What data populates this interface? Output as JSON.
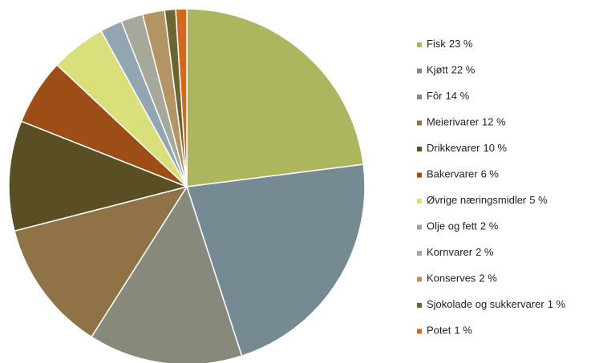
{
  "chart_data": {
    "type": "pie",
    "categories": [
      "Fisk",
      "Kjøtt",
      "Fôr",
      "Meierivarer",
      "Drikkevarer",
      "Bakervarer",
      "Øvrige næringsmidler",
      "Olje og fett",
      "Kornvarer",
      "Konserves",
      "Sjokolade og sukkervarer",
      "Potet"
    ],
    "values": [
      23,
      22,
      14,
      12,
      10,
      6,
      5,
      2,
      2,
      2,
      1,
      1
    ],
    "value_labels": [
      "23 %",
      "22 %",
      "14 %",
      "12 %",
      "10 %",
      "6 %",
      "5 %",
      "2 %",
      "2 %",
      "2 %",
      "1 %",
      "1 %"
    ],
    "colors": [
      "#adb65e",
      "#768a93",
      "#878a7a",
      "#8f7245",
      "#5a4e24",
      "#9c4e16",
      "#d9df7a",
      "#91a6b0",
      "#a5a89a",
      "#b39464",
      "#6b6530",
      "#d2691e"
    ],
    "legend": "right"
  }
}
